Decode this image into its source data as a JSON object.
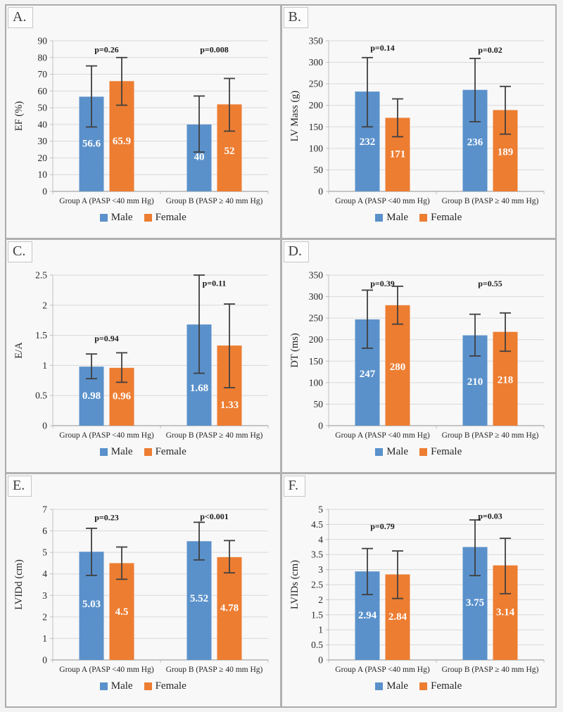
{
  "figure": {
    "legend": [
      "Male",
      "Female"
    ],
    "colors": {
      "male": "#5A91CB",
      "female": "#ED7D31",
      "error_bar": "#404040",
      "gridline": "#D9D9D9",
      "axis": "#A6A6A6",
      "tick": "#BFBFBF",
      "text": "#262626",
      "value_label": "#FFFFFF",
      "panel_bg": "#F8F8F8",
      "divider": "#B0B0B0"
    }
  },
  "chart_data": [
    {
      "panel": "A.",
      "type": "bar",
      "ylabel": "EF (%)",
      "ylim": [
        0,
        90
      ],
      "ytick_vals": [
        0,
        10,
        20,
        30,
        40,
        50,
        60,
        70,
        80,
        90
      ],
      "ytick_labels": [
        "0",
        "10",
        "20",
        "30",
        "40",
        "50",
        "60",
        "70",
        "80",
        "90"
      ],
      "categories": [
        "Group A (PASP <40 mm Hg)",
        "Group B (PASP ≥ 40 mm Hg)"
      ],
      "series": [
        {
          "name": "Male",
          "values": [
            56.6,
            40
          ],
          "labels": [
            "56.6",
            "40"
          ],
          "err_low": [
            38.5,
            23.5
          ],
          "err_high": [
            75,
            57
          ],
          "label_frac": [
            0.51,
            0.52
          ]
        },
        {
          "name": "Female",
          "values": [
            65.9,
            52
          ],
          "labels": [
            "65.9",
            "52"
          ],
          "err_low": [
            51.5,
            36
          ],
          "err_high": [
            80,
            67.5
          ],
          "label_frac": [
            0.46,
            0.47
          ]
        }
      ],
      "p_values": [
        {
          "text": "p=0.26",
          "y": 83
        },
        {
          "text": "p=0.008",
          "y": 83
        }
      ]
    },
    {
      "panel": "B.",
      "type": "bar",
      "ylabel": "LV Mass (g)",
      "ylim": [
        0,
        350
      ],
      "ytick_vals": [
        0,
        50,
        100,
        150,
        200,
        250,
        300,
        350
      ],
      "ytick_labels": [
        "0",
        "50",
        "100",
        "150",
        "200",
        "250",
        "300",
        "350"
      ],
      "categories": [
        "Group A (PASP <40 mm Hg)",
        "Group B (PASP ≥ 40 mm Hg)"
      ],
      "series": [
        {
          "name": "Male",
          "values": [
            232,
            236
          ],
          "labels": [
            "232",
            "236"
          ],
          "err_low": [
            150,
            162
          ],
          "err_high": [
            311,
            309
          ],
          "label_frac": [
            0.5,
            0.49
          ]
        },
        {
          "name": "Female",
          "values": [
            171,
            189
          ],
          "labels": [
            "171",
            "189"
          ],
          "err_low": [
            127,
            133
          ],
          "err_high": [
            215,
            244
          ],
          "label_frac": [
            0.51,
            0.49
          ]
        }
      ],
      "p_values": [
        {
          "text": "p=0.14",
          "y": 327
        },
        {
          "text": "p=0.02",
          "y": 322
        }
      ]
    },
    {
      "panel": "C.",
      "type": "bar",
      "ylabel": "E/A",
      "ylim": [
        0,
        2.5
      ],
      "ytick_vals": [
        0,
        0.5,
        1,
        1.5,
        2,
        2.5
      ],
      "ytick_labels": [
        "0",
        "0.5",
        "1",
        "1.5",
        "2",
        "2.5"
      ],
      "categories": [
        "Group A (PASP <40 mm Hg)",
        "Group B (PASP ≥ 40 mm Hg)"
      ],
      "series": [
        {
          "name": "Male",
          "values": [
            0.98,
            1.68
          ],
          "labels": [
            "0.98",
            "1.68"
          ],
          "err_low": [
            0.78,
            0.87
          ],
          "err_high": [
            1.19,
            2.5
          ],
          "label_frac": [
            0.51,
            0.375
          ]
        },
        {
          "name": "Female",
          "values": [
            0.96,
            1.33
          ],
          "labels": [
            "0.96",
            "1.33"
          ],
          "err_low": [
            0.72,
            0.63
          ],
          "err_high": [
            1.21,
            2.02
          ],
          "label_frac": [
            0.52,
            0.263
          ]
        }
      ],
      "p_values": [
        {
          "text": "p=0.94",
          "y": 1.4
        },
        {
          "text": "p=0.11",
          "y": 2.32
        }
      ]
    },
    {
      "panel": "D.",
      "type": "bar",
      "ylabel": "DT (ms)",
      "ylim": [
        0,
        350
      ],
      "ytick_vals": [
        0,
        50,
        100,
        150,
        200,
        250,
        300,
        350
      ],
      "ytick_labels": [
        "0",
        "50",
        "100",
        "150",
        "200",
        "250",
        "300",
        "350"
      ],
      "categories": [
        "Group A (PASP <40 mm Hg)",
        "Group B (PASP ≥ 40 mm Hg)"
      ],
      "series": [
        {
          "name": "Male",
          "values": [
            247,
            210
          ],
          "labels": [
            "247",
            "210"
          ],
          "err_low": [
            180,
            162
          ],
          "err_high": [
            315,
            259
          ],
          "label_frac": [
            0.49,
            0.49
          ]
        },
        {
          "name": "Female",
          "values": [
            280,
            218
          ],
          "labels": [
            "280",
            "218"
          ],
          "err_low": [
            236,
            173
          ],
          "err_high": [
            324,
            262
          ],
          "label_frac": [
            0.49,
            0.49
          ]
        }
      ],
      "p_values": [
        {
          "text": "p=0.39",
          "y": 324
        },
        {
          "text": "p=0.55",
          "y": 324
        }
      ]
    },
    {
      "panel": "E.",
      "type": "bar",
      "ylabel": "LVIDd (cm)",
      "ylim": [
        0,
        7
      ],
      "ytick_vals": [
        0,
        1,
        2,
        3,
        4,
        5,
        6,
        7
      ],
      "ytick_labels": [
        "0",
        "1",
        "2",
        "3",
        "4",
        "5",
        "6",
        "7"
      ],
      "categories": [
        "Group A (PASP <40 mm Hg)",
        "Group B (PASP ≥ 40 mm Hg)"
      ],
      "series": [
        {
          "name": "Male",
          "values": [
            5.03,
            5.52
          ],
          "labels": [
            "5.03",
            "5.52"
          ],
          "err_low": [
            3.93,
            4.65
          ],
          "err_high": [
            6.12,
            6.4
          ],
          "label_frac": [
            0.52,
            0.52
          ]
        },
        {
          "name": "Female",
          "values": [
            4.5,
            4.78
          ],
          "labels": [
            "4.5",
            "4.78"
          ],
          "err_low": [
            3.75,
            4.05
          ],
          "err_high": [
            5.25,
            5.55
          ],
          "label_frac": [
            0.5,
            0.51
          ]
        }
      ],
      "p_values": [
        {
          "text": "p=0.23",
          "y": 6.5
        },
        {
          "text": "p<0.001",
          "y": 6.55
        }
      ]
    },
    {
      "panel": "F.",
      "type": "bar",
      "ylabel": "LVIDs (cm)",
      "ylim": [
        0,
        5
      ],
      "ytick_vals": [
        0,
        0.5,
        1,
        1.5,
        2,
        2.5,
        3,
        3.5,
        4,
        4.5,
        5
      ],
      "ytick_labels": [
        "0",
        "0.5",
        "1",
        "1.5",
        "2",
        "2.5",
        "3",
        "3.5",
        "4",
        "4.5",
        "5"
      ],
      "categories": [
        "Group A (PASP <40 mm Hg)",
        "Group B (PASP ≥ 40 mm Hg)"
      ],
      "series": [
        {
          "name": "Male",
          "values": [
            2.94,
            3.75
          ],
          "labels": [
            "2.94",
            "3.75"
          ],
          "err_low": [
            2.17,
            2.8
          ],
          "err_high": [
            3.7,
            4.65
          ],
          "label_frac": [
            0.51,
            0.51
          ]
        },
        {
          "name": "Female",
          "values": [
            2.84,
            3.14
          ],
          "labels": [
            "2.84",
            "3.14"
          ],
          "err_low": [
            2.04,
            2.2
          ],
          "err_high": [
            3.62,
            4.04
          ],
          "label_frac": [
            0.51,
            0.51
          ]
        }
      ],
      "p_values": [
        {
          "text": "p=0.79",
          "y": 4.35
        },
        {
          "text": "p=0.03",
          "y": 4.68
        }
      ]
    }
  ]
}
